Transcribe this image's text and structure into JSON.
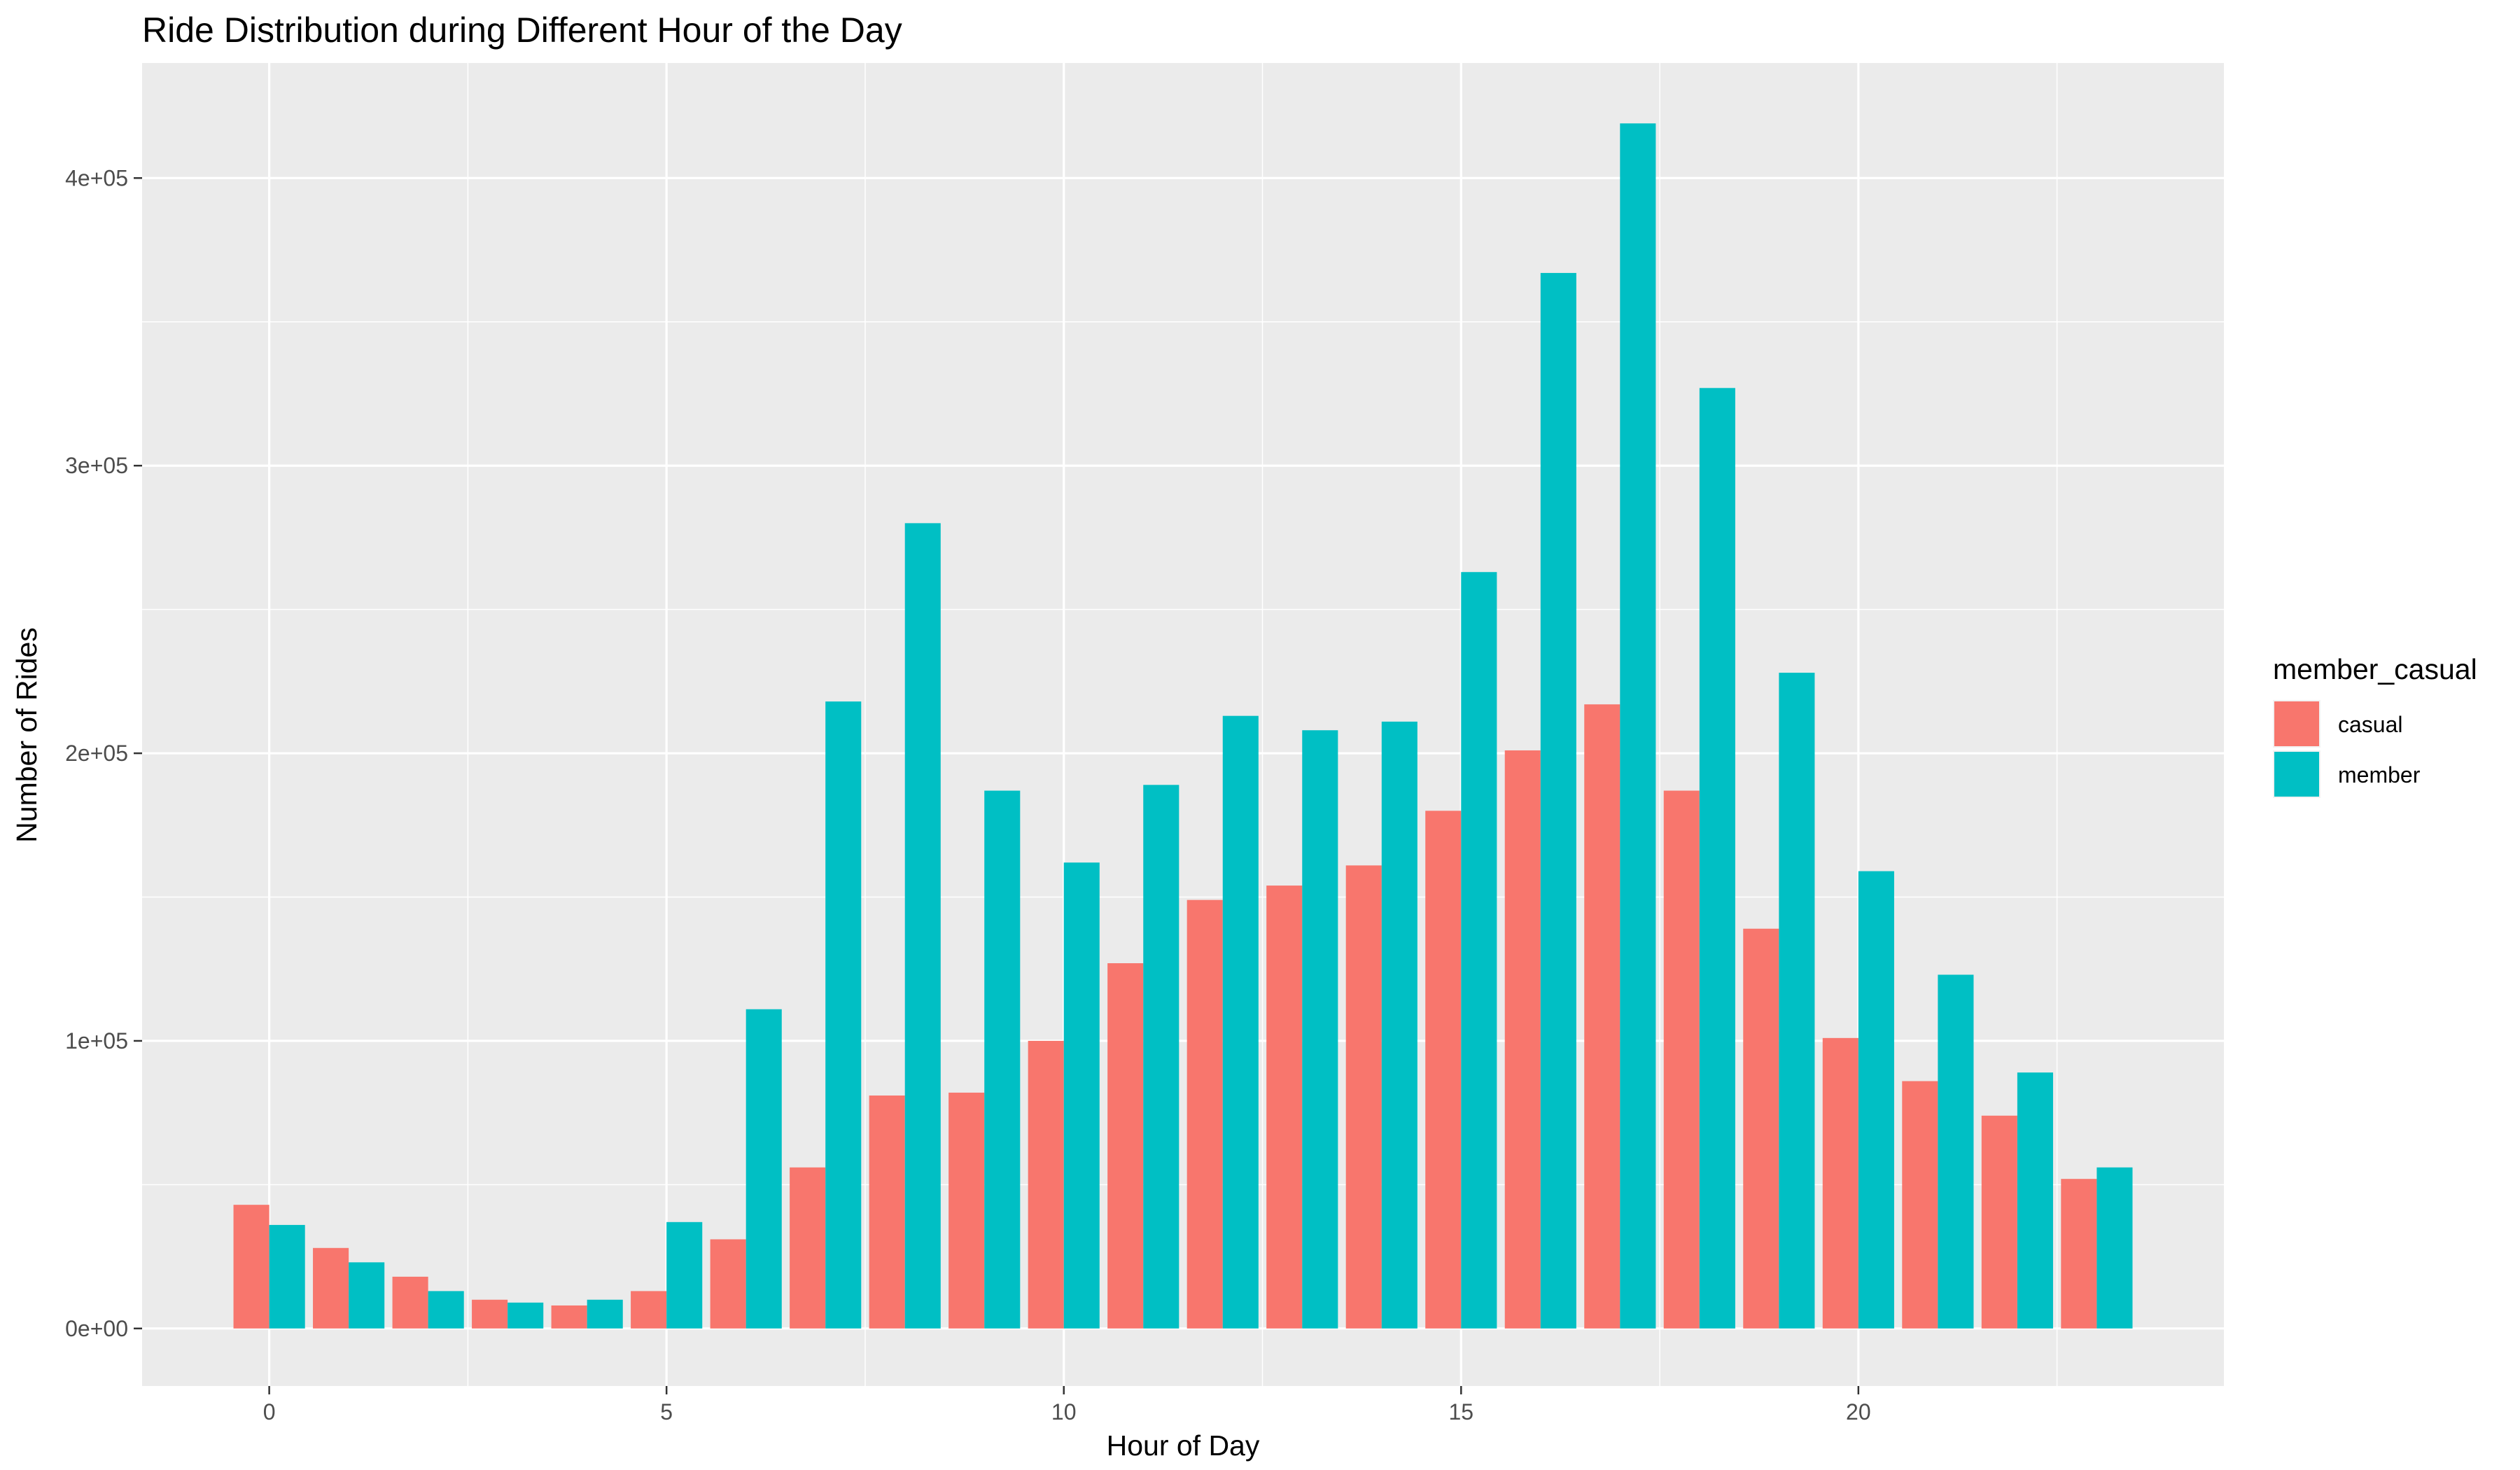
{
  "chart_data": {
    "type": "bar",
    "title": "Ride Distribution during Different Hour of the Day",
    "xlabel": "Hour of Day",
    "ylabel": "Number of Rides",
    "xlim": [
      -1.6,
      24.6
    ],
    "ylim": [
      -20000,
      440000
    ],
    "x_ticks": [
      0,
      5,
      10,
      15,
      20
    ],
    "x_tick_labels": [
      "0",
      "5",
      "10",
      "15",
      "20"
    ],
    "y_ticks": [
      0,
      100000,
      200000,
      300000,
      400000
    ],
    "y_tick_labels": [
      "0e+00",
      "1e+05",
      "2e+05",
      "3e+05",
      "4e+05"
    ],
    "grid": true,
    "legend_position": "right",
    "legend_title": "member_casual",
    "x": [
      0,
      1,
      2,
      3,
      4,
      5,
      6,
      7,
      8,
      9,
      10,
      11,
      12,
      13,
      14,
      15,
      16,
      17,
      18,
      19,
      20,
      21,
      22,
      23
    ],
    "series": [
      {
        "name": "casual",
        "color": "#F8766D",
        "values": [
          43000,
          28000,
          18000,
          10000,
          8000,
          13000,
          31000,
          56000,
          81000,
          82000,
          100000,
          127000,
          149000,
          154000,
          161000,
          180000,
          201000,
          217000,
          187000,
          139000,
          101000,
          86000,
          74000,
          52000
        ]
      },
      {
        "name": "member",
        "color": "#00BFC4",
        "values": [
          36000,
          23000,
          13000,
          9000,
          10000,
          37000,
          111000,
          218000,
          280000,
          187000,
          162000,
          189000,
          213000,
          208000,
          211000,
          263000,
          367000,
          419000,
          327000,
          228000,
          159000,
          123000,
          89000,
          56000
        ]
      }
    ]
  },
  "colors": {
    "panel_background": "#EBEBEB",
    "grid_major": "#FFFFFF",
    "tick_text": "#4D4D4D",
    "tick_mark": "#333333"
  }
}
